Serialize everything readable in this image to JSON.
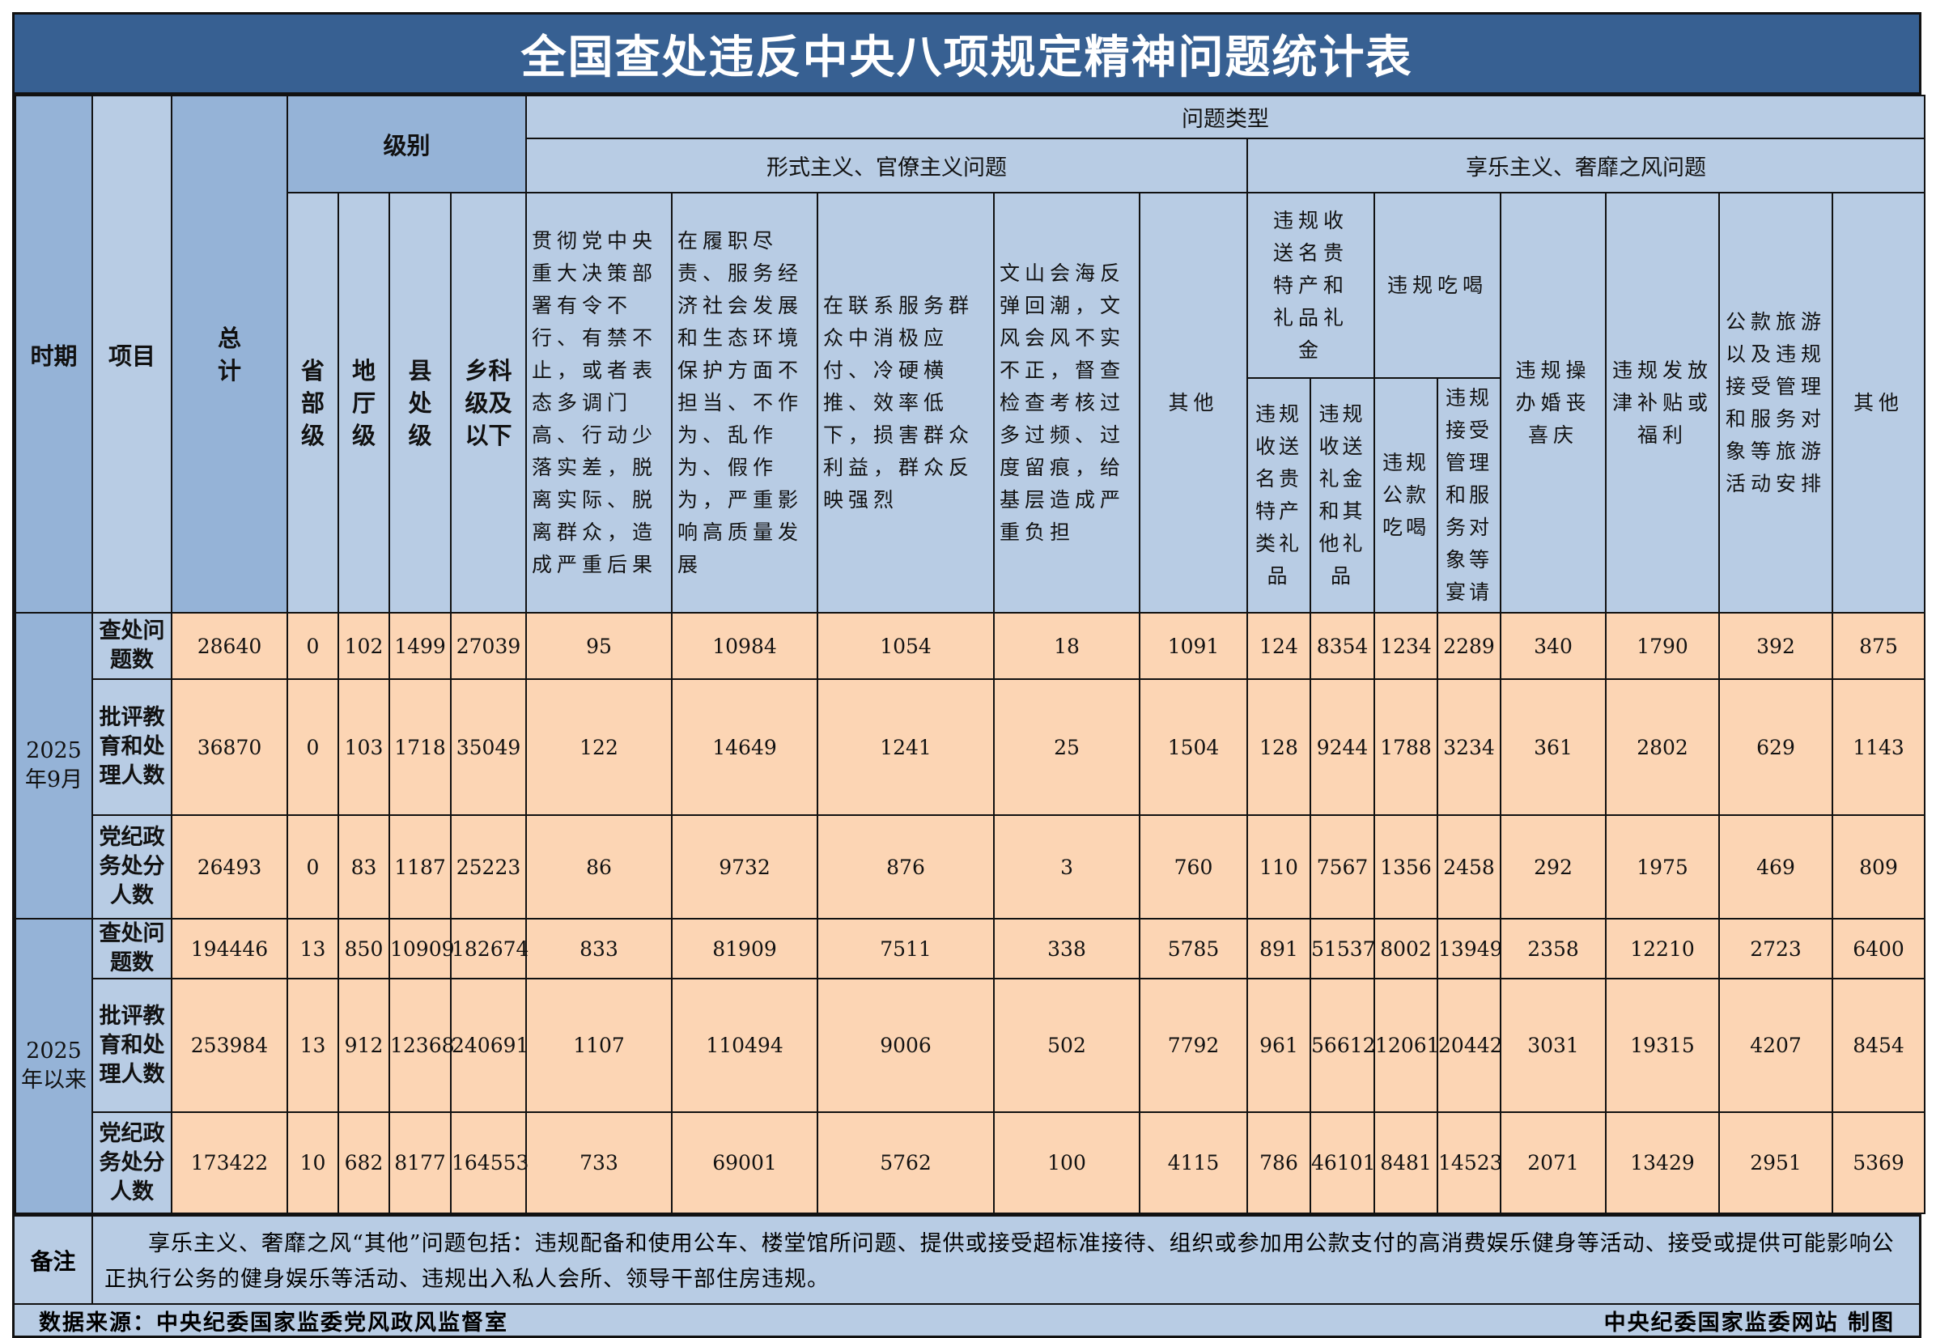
{
  "title": "全国查处违反中央八项规定精神问题统计表",
  "header": {
    "period": "时期",
    "item": "项目",
    "total": "总计",
    "level": "级别",
    "levels": [
      "省部级",
      "地厅级",
      "县处级",
      "乡科级及以下"
    ],
    "problem_type": "问题类型",
    "formalism": "形式主义、官僚主义问题",
    "hedonism": "享乐主义、奢靡之风问题",
    "formalism_cols": [
      "贯彻党中央重大决策部署有令不行、有禁不止，或者表态多调门高、行动少落实差，脱离实际、脱离群众，造成严重后果",
      "在履职尽责、服务经济社会发展和生态环境保护方面不担当、不作为、乱作为、假作为，严重影响高质量发展",
      "在联系服务群众中消极应付、冷硬横推、效率低下，损害群众利益，群众反映强烈",
      "文山会海反弹回潮，文风会风不实不正，督查检查考核过多过频、过度留痕，给基层造成严重负担",
      "其他"
    ],
    "gifts_group": "违规收送名贵特产和礼品礼金",
    "gifts_cols": [
      "违规收送名贵特产类礼品",
      "违规收送礼金和其他礼品"
    ],
    "dining_group": "违规吃喝",
    "dining_cols": [
      "违规公款吃喝",
      "违规接受管理和服务对象等宴请"
    ],
    "hedonism_cols": [
      "违规操办婚丧喜庆",
      "违规发放津补贴或福利",
      "公款旅游以及违规接受管理和服务对象等旅游活动安排",
      "其他"
    ]
  },
  "periods": [
    {
      "label": "2025年9月",
      "rows": [
        {
          "item": "查处问题数",
          "values": [
            "28640",
            "0",
            "102",
            "1499",
            "27039",
            "95",
            "10984",
            "1054",
            "18",
            "1091",
            "124",
            "8354",
            "1234",
            "2289",
            "340",
            "1790",
            "392",
            "875"
          ]
        },
        {
          "item": "批评教育和处理人数",
          "values": [
            "36870",
            "0",
            "103",
            "1718",
            "35049",
            "122",
            "14649",
            "1241",
            "25",
            "1504",
            "128",
            "9244",
            "1788",
            "3234",
            "361",
            "2802",
            "629",
            "1143"
          ]
        },
        {
          "item": "党纪政务处分人数",
          "values": [
            "26493",
            "0",
            "83",
            "1187",
            "25223",
            "86",
            "9732",
            "876",
            "3",
            "760",
            "110",
            "7567",
            "1356",
            "2458",
            "292",
            "1975",
            "469",
            "809"
          ]
        }
      ]
    },
    {
      "label": "2025年以来",
      "rows": [
        {
          "item": "查处问题数",
          "values": [
            "194446",
            "13",
            "850",
            "10909",
            "182674",
            "833",
            "81909",
            "7511",
            "338",
            "5785",
            "891",
            "51537",
            "8002",
            "13949",
            "2358",
            "12210",
            "2723",
            "6400"
          ]
        },
        {
          "item": "批评教育和处理人数",
          "values": [
            "253984",
            "13",
            "912",
            "12368",
            "240691",
            "1107",
            "110494",
            "9006",
            "502",
            "7792",
            "961",
            "56612",
            "12061",
            "20442",
            "3031",
            "19315",
            "4207",
            "8454"
          ]
        },
        {
          "item": "党纪政务处分人数",
          "values": [
            "173422",
            "10",
            "682",
            "8177",
            "164553",
            "733",
            "69001",
            "5762",
            "100",
            "4115",
            "786",
            "46101",
            "8481",
            "14523",
            "2071",
            "13429",
            "2951",
            "5369"
          ]
        }
      ]
    }
  ],
  "note": {
    "label": "备注",
    "text": "享乐主义、奢靡之风“其他”问题包括：违规配备和使用公车、楼堂馆所问题、提供或接受超标准接待、组织或参加用公款支付的高消费娱乐健身等活动、接受或提供可能影响公正执行公务的健身娱乐等活动、违规出入私人会所、领导干部住房违规。"
  },
  "footer": {
    "source": "数据来源：中央纪委国家监委党风政风监督室",
    "credit": "中央纪委国家监委网站 制图"
  },
  "colors": {
    "title_bg": "#376092",
    "header_light": "#b8cce4",
    "header_dark": "#95b3d7",
    "data_bg": "#fcd5b4"
  }
}
